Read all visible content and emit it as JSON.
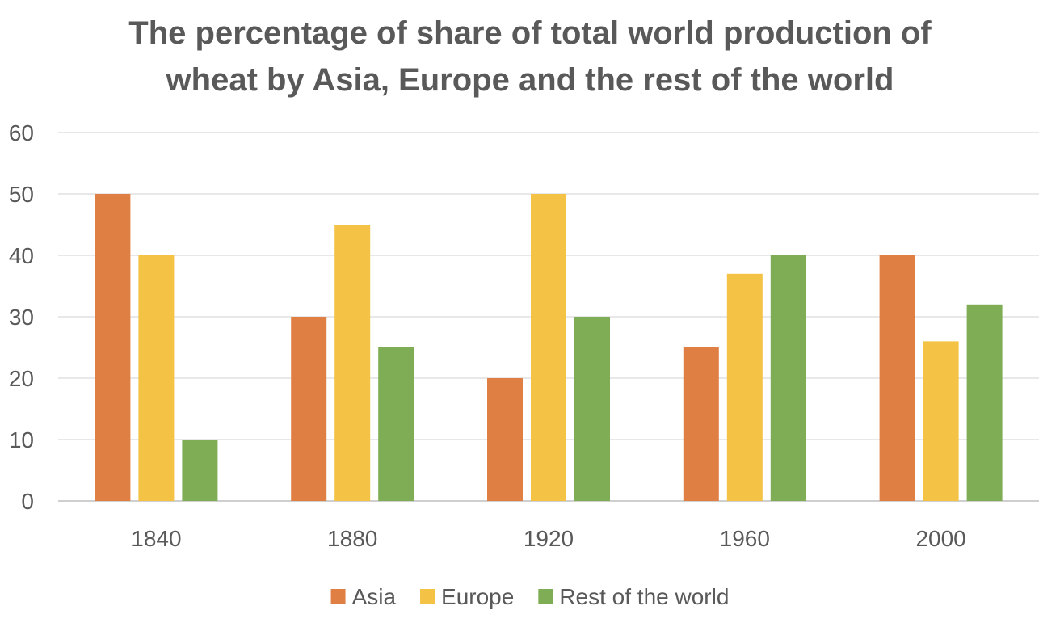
{
  "chart_data": {
    "type": "bar",
    "title_lines": [
      "The percentage of share of total world production of",
      "wheat by Asia, Europe and the rest of the world"
    ],
    "xlabel": "",
    "ylabel": "",
    "categories": [
      "1840",
      "1880",
      "1920",
      "1960",
      "2000"
    ],
    "ylim": [
      0,
      60
    ],
    "yticks": [
      0,
      10,
      20,
      30,
      40,
      50,
      60
    ],
    "grid": true,
    "legend_position": "bottom",
    "series": [
      {
        "name": "Asia",
        "color": "#E07F44",
        "values": [
          50,
          30,
          20,
          25,
          40
        ]
      },
      {
        "name": "Europe",
        "color": "#F4C244",
        "values": [
          40,
          45,
          50,
          37,
          26
        ]
      },
      {
        "name": "Rest of the world",
        "color": "#7FAD55",
        "values": [
          10,
          25,
          30,
          40,
          32
        ]
      }
    ]
  }
}
